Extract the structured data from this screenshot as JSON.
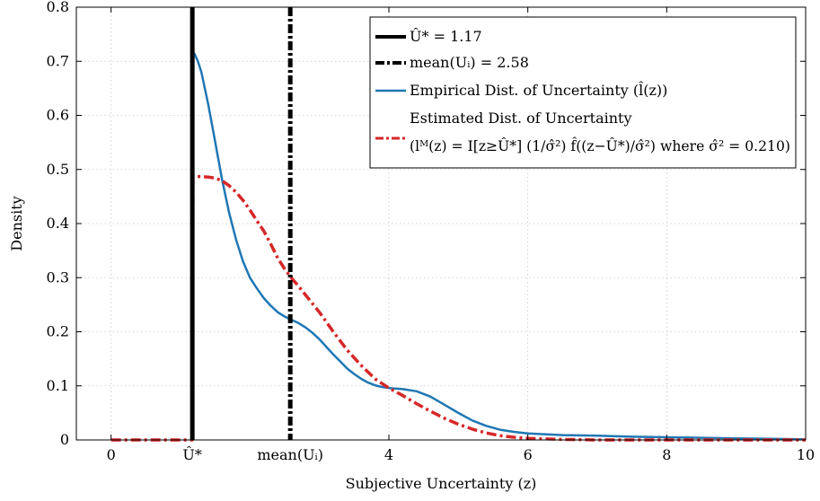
{
  "chart_data": {
    "type": "line",
    "xlabel": "Subjective Uncertainty (z)",
    "ylabel": "Density",
    "xlim": [
      -0.5,
      10
    ],
    "ylim": [
      0,
      0.8
    ],
    "grid": true,
    "legend_position": "top-right",
    "x_ticks": [
      {
        "value": 0,
        "label": "0"
      },
      {
        "value": 1.17,
        "label": "Û*"
      },
      {
        "value": 2.58,
        "label": "mean(Uᵢ)"
      },
      {
        "value": 4,
        "label": "4"
      },
      {
        "value": 6,
        "label": "6"
      },
      {
        "value": 8,
        "label": "8"
      },
      {
        "value": 10,
        "label": "10"
      }
    ],
    "y_ticks": [
      {
        "value": 0,
        "label": "0"
      },
      {
        "value": 0.1,
        "label": "0.1"
      },
      {
        "value": 0.2,
        "label": "0.2"
      },
      {
        "value": 0.3,
        "label": "0.3"
      },
      {
        "value": 0.4,
        "label": "0.4"
      },
      {
        "value": 0.5,
        "label": "0.5"
      },
      {
        "value": 0.6,
        "label": "0.6"
      },
      {
        "value": 0.7,
        "label": "0.7"
      },
      {
        "value": 0.8,
        "label": "0.8"
      }
    ],
    "vlines": [
      {
        "name": "Û* = 1.17",
        "x": 1.17,
        "color": "#000000",
        "style": "solid"
      },
      {
        "name": "mean(Uᵢ) = 2.58",
        "x": 2.58,
        "color": "#000000",
        "style": "dashdot"
      }
    ],
    "series": [
      {
        "name": "Empirical Dist. of Uncertainty (l̂(z))",
        "color": "#1f77b4",
        "style": "solid",
        "x": [
          1.17,
          1.18,
          1.2,
          1.25,
          1.3,
          1.4,
          1.5,
          1.6,
          1.7,
          1.8,
          1.9,
          2.0,
          2.1,
          2.2,
          2.3,
          2.4,
          2.5,
          2.6,
          2.7,
          2.8,
          2.9,
          3.0,
          3.1,
          3.2,
          3.3,
          3.4,
          3.5,
          3.6,
          3.7,
          3.8,
          3.9,
          4.0,
          4.2,
          4.4,
          4.6,
          4.8,
          5.0,
          5.2,
          5.4,
          5.6,
          5.8,
          6.0,
          6.5,
          7.0,
          7.5,
          8.0,
          8.5,
          9.0,
          9.5,
          10.0
        ],
        "y": [
          0.0,
          0.716,
          0.714,
          0.7,
          0.68,
          0.62,
          0.55,
          0.48,
          0.42,
          0.37,
          0.33,
          0.3,
          0.28,
          0.262,
          0.248,
          0.236,
          0.228,
          0.222,
          0.216,
          0.208,
          0.198,
          0.186,
          0.172,
          0.158,
          0.145,
          0.132,
          0.122,
          0.113,
          0.106,
          0.101,
          0.098,
          0.096,
          0.094,
          0.09,
          0.08,
          0.065,
          0.05,
          0.036,
          0.026,
          0.019,
          0.015,
          0.012,
          0.009,
          0.008,
          0.006,
          0.005,
          0.004,
          0.003,
          0.002,
          0.001
        ]
      },
      {
        "name": "Estimated Dist. of Uncertainty",
        "color": "#d62728",
        "style": "dashdot",
        "x": [
          0.0,
          1.15,
          1.17,
          1.18,
          1.3,
          1.4,
          1.5,
          1.6,
          1.7,
          1.8,
          1.9,
          2.0,
          2.1,
          2.2,
          2.3,
          2.4,
          2.5,
          2.6,
          2.7,
          2.8,
          2.9,
          3.0,
          3.2,
          3.4,
          3.6,
          3.8,
          4.0,
          4.2,
          4.4,
          4.6,
          4.8,
          5.0,
          5.2,
          5.4,
          5.6,
          5.8,
          6.0,
          6.5,
          7.0,
          8.0,
          9.0,
          10.0
        ],
        "y": [
          0.0,
          0.0,
          0.0,
          0.487,
          0.487,
          0.486,
          0.484,
          0.479,
          0.47,
          0.458,
          0.443,
          0.425,
          0.405,
          0.386,
          0.362,
          0.336,
          0.316,
          0.299,
          0.284,
          0.268,
          0.252,
          0.236,
          0.2,
          0.166,
          0.138,
          0.113,
          0.096,
          0.082,
          0.067,
          0.053,
          0.04,
          0.029,
          0.02,
          0.013,
          0.008,
          0.005,
          0.003,
          0.001,
          0.0,
          0.0,
          0.0,
          0.0
        ]
      }
    ],
    "legend": [
      {
        "kind": "vline_solid",
        "label": "Û* = 1.17"
      },
      {
        "kind": "vline_dashdot",
        "label": "mean(Uᵢ) = 2.58"
      },
      {
        "kind": "blue_solid",
        "label": "Empirical Dist. of Uncertainty (l̂(z))"
      },
      {
        "kind": "red_dashdot",
        "label_line1": "Estimated Dist. of Uncertainty",
        "label_line2": "(lᴹ(z) = I[z≥Û*] (1/σ̂²) f̂((z−Û*)/σ̂²) where σ̂² = 0.210)"
      }
    ]
  }
}
